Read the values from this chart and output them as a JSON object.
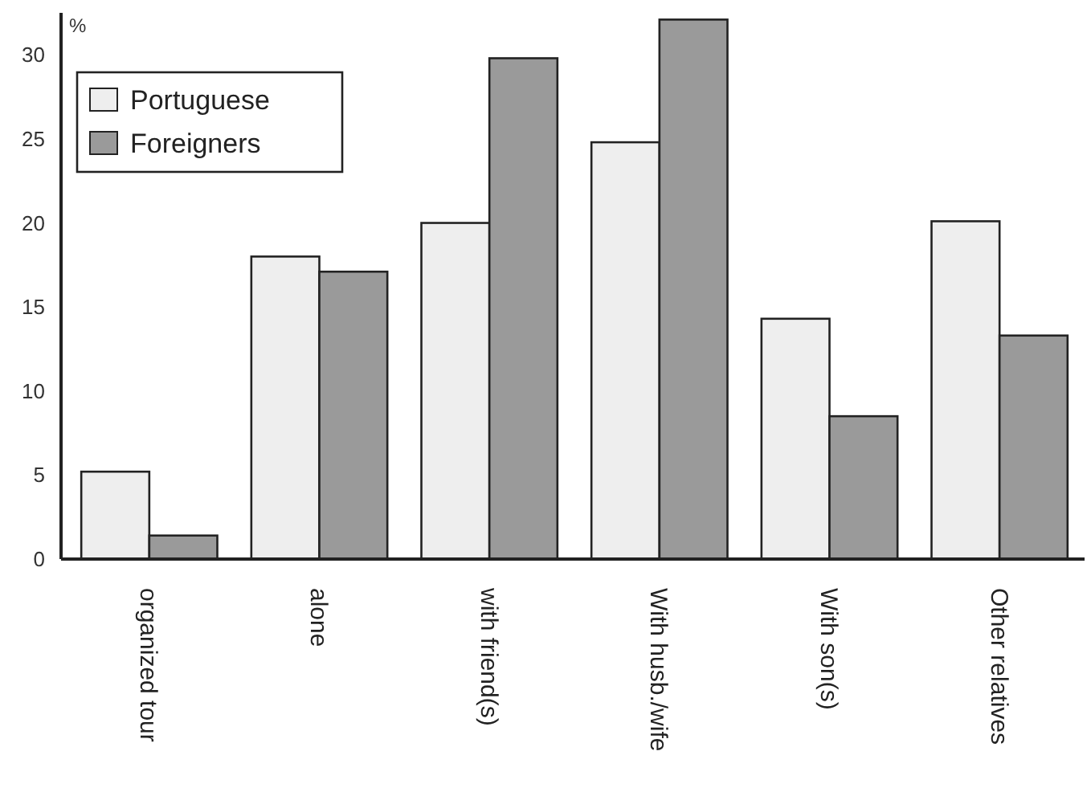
{
  "chart_data": {
    "type": "bar",
    "ylabel": "%",
    "categories": [
      "organized tour",
      "alone",
      "with friend(s)",
      "With husb./wife",
      "With son(s)",
      "Other relatives"
    ],
    "series": [
      {
        "name": "Portuguese",
        "color": "#eeeeee",
        "values": [
          5.2,
          18,
          20,
          24.8,
          14.3,
          20.1
        ]
      },
      {
        "name": "Foreigners",
        "color": "#9a9a9a",
        "values": [
          1.4,
          17.1,
          29.8,
          32.1,
          8.5,
          13.3
        ]
      }
    ],
    "ylim": [
      0,
      32.5
    ],
    "yticks": [
      0,
      5,
      10,
      15,
      20,
      25,
      30
    ],
    "grid": false,
    "legend": "top left"
  }
}
